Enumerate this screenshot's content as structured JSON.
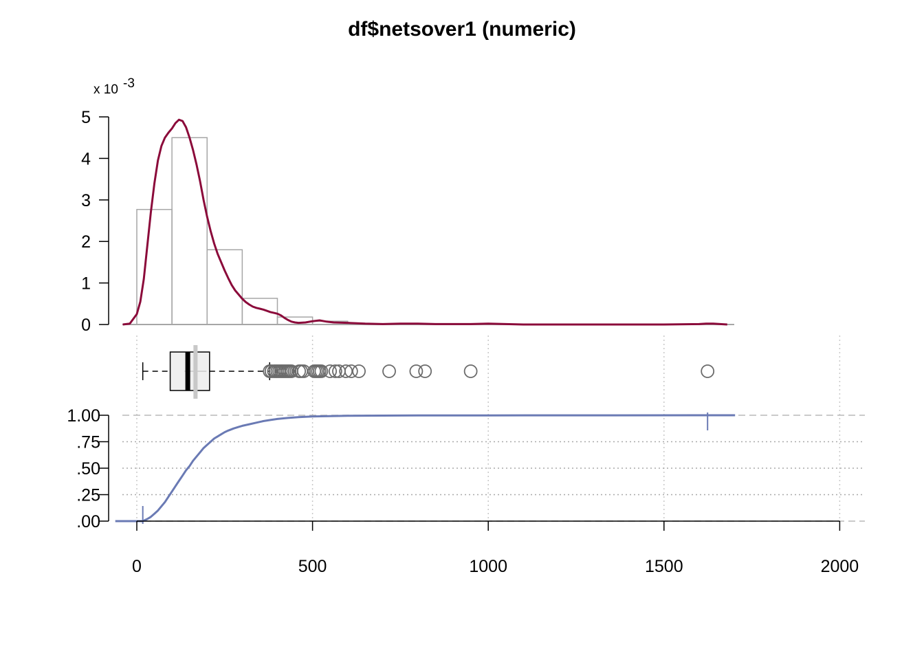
{
  "title": "df$netsover1 (numeric)",
  "chart_data": {
    "type": "composite",
    "panels": [
      "histogram+density",
      "boxplot",
      "ecdf"
    ],
    "title": "df$netsover1 (numeric)",
    "x_axis": {
      "range": [
        -80,
        2050
      ],
      "ticks": [
        0,
        500,
        1000,
        1500,
        2000
      ],
      "tick_labels": [
        "0",
        "500",
        "1000",
        "1500",
        "2000"
      ],
      "grid": true
    },
    "histogram": {
      "bin_width": 100,
      "bins": [
        {
          "x0": 0,
          "x1": 100,
          "density": 2.77
        },
        {
          "x0": 100,
          "x1": 200,
          "density": 4.5
        },
        {
          "x0": 200,
          "x1": 300,
          "density": 1.8
        },
        {
          "x0": 300,
          "x1": 400,
          "density": 0.63
        },
        {
          "x0": 400,
          "x1": 500,
          "density": 0.18
        },
        {
          "x0": 500,
          "x1": 600,
          "density": 0.08
        }
      ],
      "y_ticks": [
        0,
        1,
        2,
        3,
        4,
        5
      ],
      "y_tick_labels": [
        "0",
        "1",
        "2",
        "3",
        "4",
        "5"
      ],
      "y_scale_note": "x 10",
      "y_scale_exponent": "-3",
      "bar_color": "#a6a6a6"
    },
    "density": {
      "color": "#8b0a3a",
      "x": [
        -40,
        -20,
        0,
        10,
        20,
        30,
        40,
        50,
        60,
        70,
        80,
        90,
        100,
        110,
        120,
        130,
        140,
        150,
        160,
        170,
        180,
        190,
        200,
        210,
        220,
        230,
        240,
        250,
        260,
        270,
        280,
        290,
        300,
        310,
        320,
        330,
        340,
        350,
        360,
        370,
        380,
        390,
        400,
        410,
        420,
        430,
        440,
        450,
        460,
        480,
        500,
        520,
        540,
        560,
        600,
        650,
        700,
        750,
        800,
        850,
        900,
        950,
        1000,
        1050,
        1100,
        1200,
        1300,
        1400,
        1500,
        1600,
        1620,
        1640,
        1660,
        1680
      ],
      "y": [
        0.0,
        0.02,
        0.25,
        0.55,
        1.1,
        1.9,
        2.7,
        3.4,
        3.95,
        4.3,
        4.5,
        4.62,
        4.72,
        4.85,
        4.93,
        4.9,
        4.75,
        4.5,
        4.2,
        3.85,
        3.45,
        3.0,
        2.6,
        2.25,
        1.95,
        1.7,
        1.5,
        1.3,
        1.12,
        0.95,
        0.82,
        0.72,
        0.62,
        0.54,
        0.48,
        0.43,
        0.4,
        0.38,
        0.36,
        0.33,
        0.3,
        0.28,
        0.26,
        0.22,
        0.16,
        0.11,
        0.07,
        0.05,
        0.04,
        0.05,
        0.08,
        0.1,
        0.07,
        0.05,
        0.04,
        0.02,
        0.01,
        0.02,
        0.02,
        0.01,
        0.01,
        0.01,
        0.02,
        0.01,
        0.0,
        0.0,
        0.0,
        0.0,
        0.0,
        0.01,
        0.02,
        0.02,
        0.01,
        0.0
      ]
    },
    "boxplot": {
      "whisker_low": 17,
      "q1": 95,
      "median": 145,
      "q3": 207,
      "whisker_high": 378,
      "mean": 167,
      "box_fill": "#efefef",
      "mean_color": "#c8c8c8",
      "outliers": [
        378,
        383,
        390,
        395,
        400,
        405,
        410,
        415,
        420,
        425,
        430,
        435,
        440,
        462,
        468,
        475,
        505,
        510,
        515,
        520,
        525,
        550,
        565,
        575,
        595,
        610,
        632,
        718,
        795,
        820,
        950,
        1624
      ]
    },
    "ecdf": {
      "color": "#6a7ab4",
      "x": [
        17,
        30,
        40,
        50,
        60,
        70,
        80,
        90,
        100,
        110,
        120,
        130,
        140,
        150,
        160,
        170,
        180,
        190,
        200,
        210,
        220,
        230,
        240,
        250,
        260,
        275,
        290,
        300,
        320,
        340,
        360,
        380,
        400,
        430,
        460,
        500,
        550,
        600,
        700,
        800,
        1000,
        1300,
        1624
      ],
      "y": [
        0.0,
        0.02,
        0.04,
        0.07,
        0.1,
        0.14,
        0.18,
        0.23,
        0.28,
        0.33,
        0.38,
        0.43,
        0.48,
        0.52,
        0.57,
        0.61,
        0.65,
        0.69,
        0.72,
        0.75,
        0.78,
        0.8,
        0.82,
        0.84,
        0.855,
        0.875,
        0.89,
        0.9,
        0.915,
        0.93,
        0.945,
        0.955,
        0.965,
        0.975,
        0.982,
        0.988,
        0.992,
        0.995,
        0.997,
        0.998,
        0.999,
        0.9995,
        1.0
      ],
      "y_ticks": [
        0,
        0.25,
        0.5,
        0.75,
        1.0
      ],
      "y_tick_labels": [
        ".00",
        ".25",
        ".50",
        ".75",
        "1.00"
      ],
      "min_marker": 17,
      "max_marker": 1624
    }
  }
}
